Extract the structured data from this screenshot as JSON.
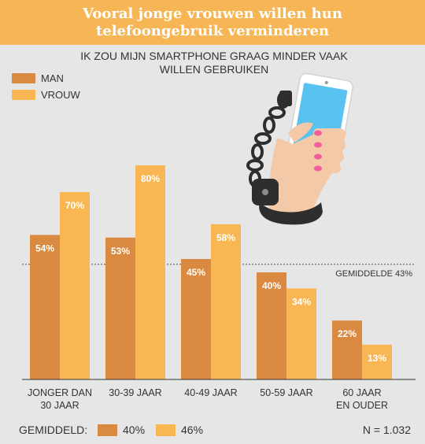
{
  "header": {
    "title": "Vooral jonge vrouwen willen hun telefoongebruik verminderen"
  },
  "chart_data": {
    "type": "bar",
    "subtitle_lines": [
      "IK ZOU MIJN SMARTPHONE GRAAG MINDER VAAK",
      "WILLEN GEBRUIKEN"
    ],
    "categories": [
      [
        "JONGER DAN",
        "30 JAAR"
      ],
      [
        "30-39 JAAR"
      ],
      [
        "40-49 JAAR"
      ],
      [
        "50-59 JAAR"
      ],
      [
        "60 JAAR",
        "EN OUDER"
      ]
    ],
    "series": [
      {
        "name": "MAN",
        "values": [
          54,
          53,
          45,
          40,
          22
        ],
        "labels": [
          "54%",
          "53%",
          "45%",
          "40%",
          "22%"
        ],
        "color": "#d98a40"
      },
      {
        "name": "VROUW",
        "values": [
          70,
          80,
          58,
          34,
          13
        ],
        "labels": [
          "70%",
          "80%",
          "58%",
          "34%",
          "13%"
        ],
        "color": "#f9b754"
      }
    ],
    "ylim": [
      0,
      100
    ],
    "reference_line": {
      "value": 43,
      "label": "GEMIDDELDE  43%"
    },
    "legend_placement": "top-left",
    "footer": {
      "average_label": "GEMIDDELD:",
      "averages": [
        {
          "value": "40%",
          "color": "#d98a40"
        },
        {
          "value": "46%",
          "color": "#f9b754"
        }
      ],
      "sample": "N = 1.032"
    },
    "illustration_icon": "smartphone-handcuffed-hand-icon"
  }
}
